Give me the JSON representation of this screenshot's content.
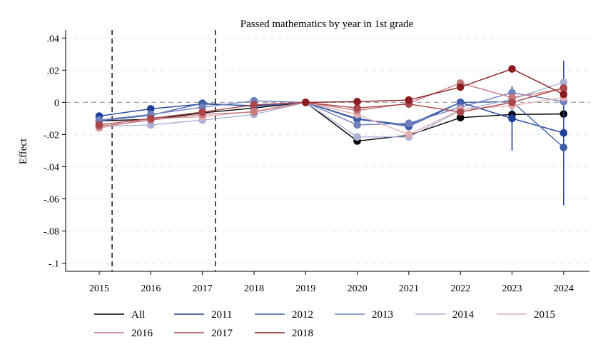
{
  "chart_data": {
    "type": "line",
    "title": "Passed mathematics by year in 1st grade",
    "xlabel": "",
    "ylabel": "Effect",
    "x": [
      2015,
      2016,
      2017,
      2018,
      2019,
      2020,
      2021,
      2022,
      2023,
      2024
    ],
    "xlim": [
      2014.35,
      2024.5
    ],
    "ylim": [
      -0.105,
      0.045
    ],
    "yticks": [
      0.04,
      0.02,
      0,
      -0.02,
      -0.04,
      -0.06,
      -0.08,
      -0.1
    ],
    "ytick_labels": [
      ".04",
      ".02",
      "0",
      "-.02",
      "-.04",
      "-.06",
      "-.08",
      "-.1"
    ],
    "reference_line_y": 0,
    "vertical_dashed_lines_x": [
      2015.25,
      2017.25
    ],
    "grid": "horizontal dashed",
    "legend_position": "bottom",
    "series": [
      {
        "name": "All",
        "color": "#000000",
        "values": [
          -0.0115,
          -0.0105,
          -0.0065,
          -0.0035,
          0,
          -0.024,
          -0.0205,
          -0.0095,
          -0.0075,
          -0.0072
        ]
      },
      {
        "name": "2011",
        "color": "#1f3f99",
        "values": [
          -0.0085,
          -0.004,
          -0.001,
          -0.002,
          0,
          -0.0105,
          -0.014,
          0.0,
          -0.01,
          -0.019
        ],
        "ci": {
          "2023": [
            -0.03,
            0.01
          ],
          "2024": [
            -0.064,
            0.026
          ]
        }
      },
      {
        "name": "2012",
        "color": "#3f5ea9",
        "values": [
          -0.0115,
          -0.008,
          -0.0005,
          -0.0025,
          0,
          -0.01,
          -0.015,
          0.0,
          0.0005,
          -0.028
        ]
      },
      {
        "name": "2013",
        "color": "#7080bd",
        "values": [
          -0.011,
          -0.0075,
          -0.003,
          0.001,
          0,
          -0.014,
          -0.013,
          -0.003,
          0.006,
          0.0005
        ]
      },
      {
        "name": "2014",
        "color": "#a9b1d7",
        "values": [
          -0.015,
          -0.014,
          -0.011,
          -0.0075,
          0,
          -0.0215,
          -0.0215,
          -0.005,
          0.002,
          0.0125
        ]
      },
      {
        "name": "2015",
        "color": "#e2aeb0",
        "values": [
          -0.016,
          -0.01,
          -0.009,
          -0.0055,
          0,
          -0.0075,
          -0.02,
          -0.0045,
          -0.002,
          0.003
        ]
      },
      {
        "name": "2016",
        "color": "#c47a7d",
        "values": [
          -0.015,
          -0.011,
          -0.0075,
          -0.006,
          0,
          -0.005,
          -0.0005,
          0.012,
          0.003,
          0.0085
        ]
      },
      {
        "name": "2017",
        "color": "#a9474c",
        "values": [
          -0.014,
          -0.01,
          -0.006,
          -0.0015,
          0,
          -0.0035,
          -0.001,
          -0.006,
          0.0,
          0.009
        ]
      },
      {
        "name": "2018",
        "color": "#8b1c22",
        "values": [
          null,
          null,
          null,
          null,
          0,
          0.0005,
          0.0015,
          0.0095,
          0.0208,
          0.005
        ]
      }
    ]
  }
}
